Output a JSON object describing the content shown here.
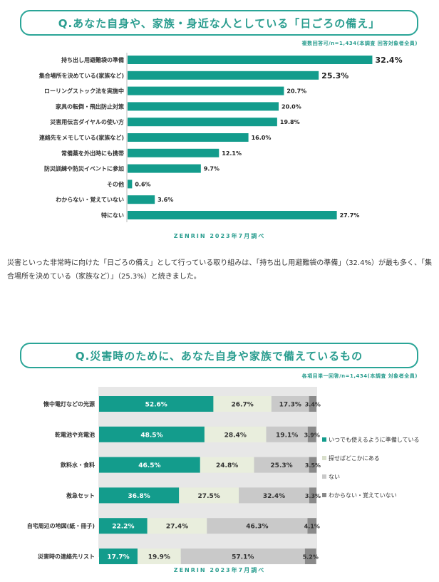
{
  "chart1": {
    "title": "Q.あなた自身や、家族・身近な人としている「日ごろの備え」",
    "note": "複数回答可/n=1,434(本調査 回答対象者全員)",
    "source": "ZENRIN 2023年7月調べ"
  },
  "paragraph": "災害といった非常時に向けた「日ごろの備え」として行っている取り組みは、「持ち出し用避難袋の準備」（32.4%）が最も多く、「集合場所を決めている（家族など）」（25.3%）と続きました。",
  "chart2": {
    "title": "Q.災害時のために、あなた自身や家族で備えているもの",
    "note": "各項目単一回答/n=1,434(本調査 対象者全員)",
    "source": "ZENRIN 2023年7月調べ"
  },
  "colors": {
    "teal": "#139c8c",
    "light": "#e9eedd",
    "gray": "#c9c9c9",
    "dark": "#8a8a8a",
    "accent": "#2a9d8f"
  },
  "chart_data": [
    {
      "type": "bar",
      "orientation": "horizontal",
      "title": "Q.あなた自身や、家族・身近な人としている「日ごろの備え」",
      "categories": [
        "持ち出し用避難袋の準備",
        "集合場所を決めている(家族など)",
        "ローリングストック法を実施中",
        "家具の転倒・飛出防止対策",
        "災害用伝言ダイヤルの使い方",
        "連絡先をメモしている(家族など)",
        "常備薬を外出時にも携帯",
        "防災訓練や防災イベントに参加",
        "その他",
        "わからない・覚えていない",
        "特にない"
      ],
      "values": [
        32.4,
        25.3,
        20.7,
        20.0,
        19.8,
        16.0,
        12.1,
        9.7,
        0.6,
        3.6,
        27.7
      ],
      "labels": [
        "32.4%",
        "25.3%",
        "20.7%",
        "20.0%",
        "19.8%",
        "16.0%",
        "12.1%",
        "9.7%",
        "0.6%",
        "3.6%",
        "27.7%"
      ],
      "unit": "%"
    },
    {
      "type": "bar",
      "orientation": "horizontal",
      "stacked": "100%",
      "title": "Q.災害時のために、あなた自身や家族で備えているもの",
      "categories": [
        "懐中電灯などの光源",
        "乾電池や充電池",
        "飲料水・食料",
        "救急セット",
        "自宅周辺の地図(紙・冊子)",
        "災害時の連絡先リスト"
      ],
      "series": [
        {
          "name": "いつでも使えるように準備している",
          "values": [
            52.6,
            48.5,
            46.5,
            36.8,
            22.2,
            17.7
          ],
          "labels": [
            "52.6%",
            "48.5%",
            "46.5%",
            "36.8%",
            "22.2%",
            "17.7%"
          ]
        },
        {
          "name": "探せばどこかにある",
          "values": [
            26.7,
            28.4,
            24.8,
            27.5,
            27.4,
            19.9
          ],
          "labels": [
            "26.7%",
            "28.4%",
            "24.8%",
            "27.5%",
            "27.4%",
            "19.9%"
          ]
        },
        {
          "name": "ない",
          "values": [
            17.3,
            19.1,
            25.3,
            32.4,
            46.3,
            57.1
          ],
          "labels": [
            "17.3%",
            "19.1%",
            "25.3%",
            "32.4%",
            "46.3%",
            "57.1%"
          ]
        },
        {
          "name": "わからない・覚えていない",
          "values": [
            3.4,
            3.9,
            3.5,
            3.3,
            4.1,
            5.2
          ],
          "labels": [
            "3.4%",
            "3.9%",
            "3.5%",
            "3.3%",
            "4.1%",
            "5.2%"
          ]
        }
      ],
      "legend": "right",
      "unit": "%"
    }
  ]
}
